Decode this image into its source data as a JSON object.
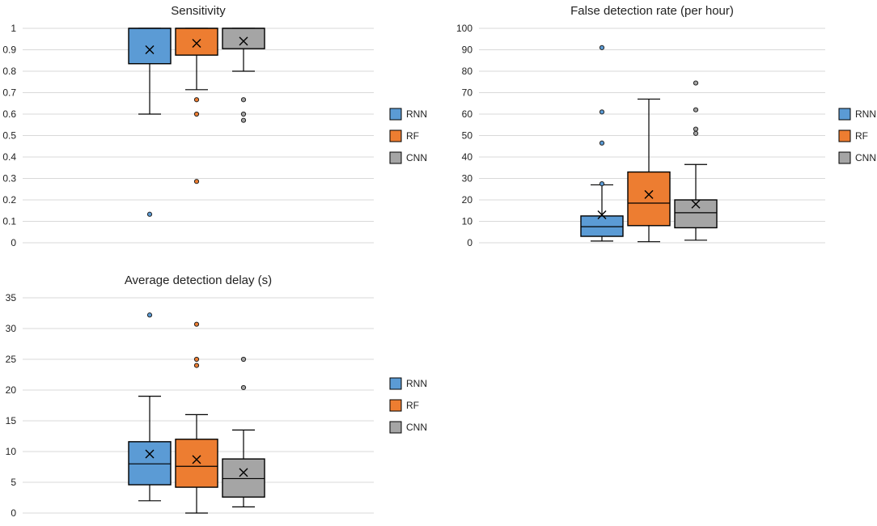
{
  "chart_data": [
    {
      "type": "box",
      "title": "Sensitivity",
      "ylim": [
        0,
        1
      ],
      "yticks": [
        0,
        0.1,
        0.2,
        0.3,
        0.4,
        0.5,
        0.6,
        0.7,
        0.8,
        0.9,
        1
      ],
      "ytick_labels": [
        "0",
        "0.1",
        "0.2",
        "0.3",
        "0.4",
        "0.5",
        "0.6",
        "0.7",
        "0.8",
        "0.9",
        "1"
      ],
      "legend_position": "right",
      "series": [
        {
          "name": "RNN",
          "color": "#5b9bd5",
          "whisker_low": 0.6,
          "q1": 0.835,
          "median": 1.0,
          "q3": 1.0,
          "whisker_high": 1.0,
          "mean": 0.9,
          "outliers": [
            0.133
          ]
        },
        {
          "name": "RF",
          "color": "#ed7d31",
          "whisker_low": 0.714,
          "q1": 0.875,
          "median": 1.0,
          "q3": 1.0,
          "whisker_high": 1.0,
          "mean": 0.93,
          "outliers": [
            0.667,
            0.6,
            0.286
          ]
        },
        {
          "name": "CNN",
          "color": "#a5a5a5",
          "whisker_low": 0.8,
          "q1": 0.905,
          "median": 1.0,
          "q3": 1.0,
          "whisker_high": 1.0,
          "mean": 0.94,
          "outliers": [
            0.667,
            0.6,
            0.571
          ]
        }
      ]
    },
    {
      "type": "box",
      "title": "False detection rate (per hour)",
      "ylim": [
        0,
        100
      ],
      "yticks": [
        0,
        10,
        20,
        30,
        40,
        50,
        60,
        70,
        80,
        90,
        100
      ],
      "ytick_labels": [
        "0",
        "10",
        "20",
        "30",
        "40",
        "50",
        "60",
        "70",
        "80",
        "90",
        "100"
      ],
      "legend_position": "right",
      "series": [
        {
          "name": "RNN",
          "color": "#5b9bd5",
          "whisker_low": 0.8,
          "q1": 3.0,
          "median": 7.5,
          "q3": 12.5,
          "whisker_high": 27.0,
          "mean": 13.0,
          "outliers": [
            91.0,
            61.0,
            46.5,
            27.5
          ]
        },
        {
          "name": "RF",
          "color": "#ed7d31",
          "whisker_low": 0.5,
          "q1": 8.0,
          "median": 18.5,
          "q3": 33.0,
          "whisker_high": 67.0,
          "mean": 22.5,
          "outliers": []
        },
        {
          "name": "CNN",
          "color": "#a5a5a5",
          "whisker_low": 1.2,
          "q1": 7.0,
          "median": 14.0,
          "q3": 20.0,
          "whisker_high": 36.5,
          "mean": 18.0,
          "outliers": [
            74.5,
            62.0,
            53.0,
            51.0
          ]
        }
      ]
    },
    {
      "type": "box",
      "title": "Average detection delay (s)",
      "ylim": [
        0,
        35
      ],
      "yticks": [
        0,
        5,
        10,
        15,
        20,
        25,
        30,
        35
      ],
      "ytick_labels": [
        "0",
        "5",
        "10",
        "15",
        "20",
        "25",
        "30",
        "35"
      ],
      "legend_position": "right",
      "series": [
        {
          "name": "RNN",
          "color": "#5b9bd5",
          "whisker_low": 2.0,
          "q1": 4.6,
          "median": 8.0,
          "q3": 11.6,
          "whisker_high": 19.0,
          "mean": 9.6,
          "outliers": [
            32.2
          ]
        },
        {
          "name": "RF",
          "color": "#ed7d31",
          "whisker_low": 0.0,
          "q1": 4.2,
          "median": 7.6,
          "q3": 12.0,
          "whisker_high": 16.0,
          "mean": 8.7,
          "outliers": [
            30.7,
            25.0,
            24.0
          ]
        },
        {
          "name": "CNN",
          "color": "#a5a5a5",
          "whisker_low": 1.0,
          "q1": 2.6,
          "median": 5.6,
          "q3": 8.8,
          "whisker_high": 13.5,
          "mean": 6.6,
          "outliers": [
            25.0,
            20.4
          ]
        }
      ]
    }
  ]
}
